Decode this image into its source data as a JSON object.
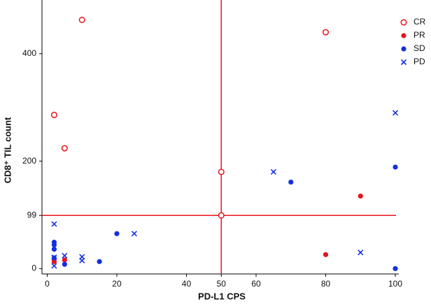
{
  "chart_data": {
    "type": "scatter",
    "xlabel": "PD-L1 CPS",
    "ylabel": "CD8⁺ TIL count",
    "xlim": [
      -1.5,
      101
    ],
    "ylim": [
      -10,
      500
    ],
    "xticks": [
      0,
      20,
      40,
      50,
      60,
      80,
      100
    ],
    "yticks": [
      0,
      99,
      200,
      400
    ],
    "ref_lines": {
      "x": 50,
      "y": 99,
      "color": "#e8141c"
    },
    "legend": "top-right",
    "series": [
      {
        "name": "CR",
        "color": "#e8141c",
        "marker": "open-circle",
        "x": [
          10,
          2,
          5,
          50,
          50,
          80
        ],
        "values": [
          463,
          286,
          224,
          180,
          99,
          440
        ]
      },
      {
        "name": "PR",
        "color": "#e8141c",
        "marker": "circle",
        "x": [
          2,
          5,
          80,
          90
        ],
        "values": [
          13,
          16,
          26,
          135
        ]
      },
      {
        "name": "SD",
        "color": "#1530e0",
        "marker": "circle",
        "x": [
          2,
          2,
          2,
          2,
          5,
          15,
          20,
          70,
          100,
          100
        ],
        "values": [
          49,
          44,
          36,
          20,
          8,
          13,
          65,
          161,
          189,
          0
        ]
      },
      {
        "name": "PD",
        "color": "#1530e0",
        "marker": "x",
        "x": [
          2,
          2,
          2,
          5,
          10,
          10,
          25,
          65,
          90,
          100
        ],
        "values": [
          83,
          21,
          5,
          24,
          22,
          15,
          65,
          180,
          30,
          290
        ]
      }
    ]
  }
}
